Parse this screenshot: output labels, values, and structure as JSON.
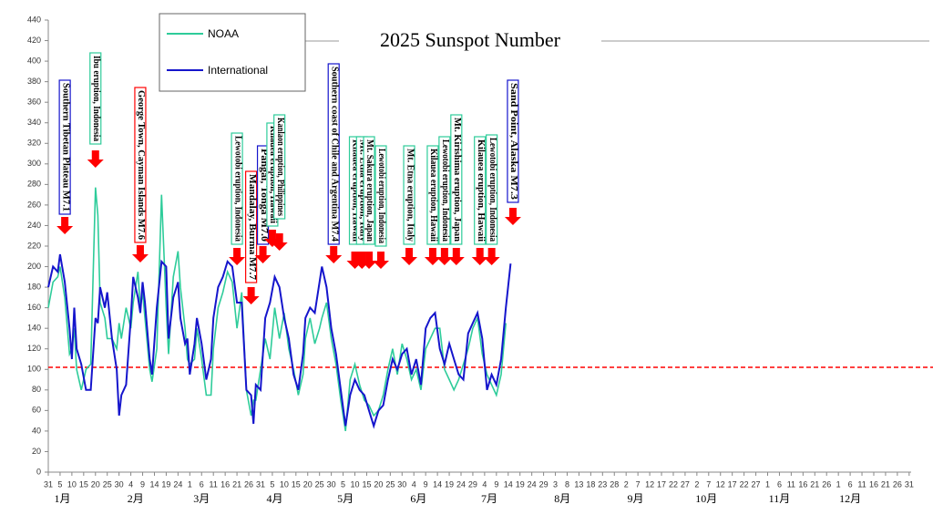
{
  "chart_data": {
    "type": "line",
    "title": "2025 Sunspot Number",
    "x": [
      0,
      2,
      4,
      5,
      7,
      9,
      10,
      11,
      12,
      14,
      16,
      18,
      20,
      21,
      22,
      24,
      25,
      27,
      29,
      30,
      31,
      33,
      35,
      36,
      38,
      39,
      40,
      41,
      43,
      44,
      46,
      48,
      50,
      51,
      53,
      55,
      56,
      58,
      59,
      60,
      62,
      63,
      65,
      67,
      69,
      70,
      72,
      74,
      76,
      78,
      80,
      82,
      84,
      86,
      87,
      88,
      90,
      92,
      94,
      96,
      98,
      100,
      102,
      104,
      106,
      108,
      109,
      111,
      113,
      115,
      116,
      118,
      120,
      122,
      124,
      126,
      128,
      130,
      132,
      134,
      136,
      138,
      140,
      142,
      144,
      146,
      148,
      150,
      152,
      154,
      156,
      158,
      160,
      162,
      164,
      166,
      168,
      170,
      172,
      174,
      176,
      178,
      180,
      182,
      184,
      186,
      188,
      190,
      192,
      194,
      196
    ],
    "series": [
      {
        "name": "NOAA",
        "color": "#2ecc9a",
        "values": [
          160,
          185,
          190,
          200,
          170,
          115,
          120,
          140,
          100,
          80,
          100,
          105,
          277,
          250,
          165,
          150,
          130,
          130,
          120,
          145,
          130,
          160,
          140,
          165,
          195,
          160,
          175,
          150,
          100,
          88,
          120,
          270,
          160,
          115,
          190,
          215,
          180,
          140,
          110,
          105,
          110,
          140,
          110,
          75,
          75,
          120,
          160,
          175,
          195,
          185,
          140,
          175,
          80,
          55,
          70,
          70,
          100,
          130,
          110,
          160,
          130,
          155,
          120,
          100,
          75,
          95,
          130,
          150,
          125,
          140,
          150,
          165,
          130,
          105,
          70,
          40,
          90,
          105,
          85,
          70,
          65,
          55,
          60,
          75,
          100,
          120,
          95,
          125,
          110,
          90,
          100,
          80,
          120,
          130,
          140,
          140,
          100,
          90,
          80,
          90,
          105,
          120,
          140,
          150,
          115,
          95,
          85,
          75,
          95,
          145,
          null
        ]
      },
      {
        "name": "International",
        "color": "#1515cc",
        "values": [
          180,
          200,
          195,
          212,
          185,
          140,
          110,
          160,
          120,
          105,
          80,
          80,
          150,
          145,
          180,
          160,
          175,
          130,
          100,
          55,
          75,
          85,
          150,
          190,
          170,
          155,
          185,
          165,
          110,
          95,
          160,
          205,
          200,
          130,
          170,
          185,
          150,
          125,
          130,
          95,
          125,
          150,
          125,
          90,
          110,
          150,
          180,
          190,
          205,
          200,
          165,
          165,
          80,
          75,
          47,
          85,
          80,
          150,
          165,
          190,
          180,
          150,
          130,
          95,
          80,
          115,
          150,
          160,
          155,
          185,
          200,
          180,
          140,
          115,
          80,
          45,
          75,
          90,
          80,
          75,
          60,
          45,
          60,
          65,
          90,
          110,
          100,
          115,
          120,
          95,
          110,
          85,
          140,
          150,
          155,
          120,
          105,
          125,
          110,
          95,
          90,
          135,
          145,
          155,
          130,
          80,
          95,
          85,
          110,
          160,
          203
        ]
      }
    ],
    "reference_line": {
      "value": 102,
      "color": "#ff0000"
    },
    "xlim": [
      0,
      367
    ],
    "xticks": [
      {
        "value": 0,
        "label": "31"
      },
      {
        "value": 5,
        "label": "5"
      },
      {
        "value": 10,
        "label": "10"
      },
      {
        "value": 15,
        "label": "15"
      },
      {
        "value": 20,
        "label": "20"
      },
      {
        "value": 25,
        "label": "25"
      },
      {
        "value": 30,
        "label": "30"
      },
      {
        "value": 35,
        "label": "4"
      },
      {
        "value": 40,
        "label": "9"
      },
      {
        "value": 45,
        "label": "14"
      },
      {
        "value": 50,
        "label": "19"
      },
      {
        "value": 55,
        "label": "24"
      },
      {
        "value": 60,
        "label": "1"
      },
      {
        "value": 65,
        "label": "6"
      },
      {
        "value": 70,
        "label": "11"
      },
      {
        "value": 75,
        "label": "16"
      },
      {
        "value": 80,
        "label": "21"
      },
      {
        "value": 85,
        "label": "26"
      },
      {
        "value": 90,
        "label": "31"
      },
      {
        "value": 95,
        "label": "5"
      },
      {
        "value": 100,
        "label": "10"
      },
      {
        "value": 105,
        "label": "15"
      },
      {
        "value": 110,
        "label": "20"
      },
      {
        "value": 115,
        "label": "25"
      },
      {
        "value": 120,
        "label": "30"
      },
      {
        "value": 125,
        "label": "5"
      },
      {
        "value": 130,
        "label": "10"
      },
      {
        "value": 135,
        "label": "15"
      },
      {
        "value": 140,
        "label": "20"
      },
      {
        "value": 145,
        "label": "25"
      },
      {
        "value": 150,
        "label": "30"
      },
      {
        "value": 155,
        "label": "4"
      },
      {
        "value": 160,
        "label": "9"
      },
      {
        "value": 165,
        "label": "14"
      },
      {
        "value": 170,
        "label": "19"
      },
      {
        "value": 175,
        "label": "24"
      },
      {
        "value": 180,
        "label": "29"
      },
      {
        "value": 185,
        "label": "4"
      },
      {
        "value": 190,
        "label": "9"
      },
      {
        "value": 195,
        "label": "14"
      },
      {
        "value": 200,
        "label": "19"
      },
      {
        "value": 205,
        "label": "24"
      },
      {
        "value": 210,
        "label": "29"
      },
      {
        "value": 215,
        "label": "3"
      },
      {
        "value": 220,
        "label": "8"
      },
      {
        "value": 225,
        "label": "13"
      },
      {
        "value": 230,
        "label": "18"
      },
      {
        "value": 235,
        "label": "23"
      },
      {
        "value": 240,
        "label": "28"
      },
      {
        "value": 245,
        "label": "2"
      },
      {
        "value": 250,
        "label": "7"
      },
      {
        "value": 255,
        "label": "12"
      },
      {
        "value": 260,
        "label": "17"
      },
      {
        "value": 265,
        "label": "22"
      },
      {
        "value": 270,
        "label": "27"
      },
      {
        "value": 275,
        "label": "2"
      },
      {
        "value": 280,
        "label": "7"
      },
      {
        "value": 285,
        "label": "12"
      },
      {
        "value": 290,
        "label": "17"
      },
      {
        "value": 295,
        "label": "22"
      },
      {
        "value": 300,
        "label": "27"
      },
      {
        "value": 305,
        "label": "1"
      },
      {
        "value": 310,
        "label": "6"
      },
      {
        "value": 315,
        "label": "11"
      },
      {
        "value": 320,
        "label": "16"
      },
      {
        "value": 325,
        "label": "21"
      },
      {
        "value": 330,
        "label": "26"
      },
      {
        "value": 335,
        "label": "1"
      },
      {
        "value": 340,
        "label": "6"
      },
      {
        "value": 345,
        "label": "11"
      },
      {
        "value": 350,
        "label": "16"
      },
      {
        "value": 355,
        "label": "21"
      },
      {
        "value": 360,
        "label": "26"
      },
      {
        "value": 365,
        "label": "31"
      }
    ],
    "month_ticks": [
      {
        "value": 6,
        "label": "1月"
      },
      {
        "value": 37,
        "label": "2月"
      },
      {
        "value": 65,
        "label": "3月"
      },
      {
        "value": 96,
        "label": "4月"
      },
      {
        "value": 126,
        "label": "5月"
      },
      {
        "value": 157,
        "label": "6月"
      },
      {
        "value": 187,
        "label": "7月"
      },
      {
        "value": 218,
        "label": "8月"
      },
      {
        "value": 249,
        "label": "9月"
      },
      {
        "value": 279,
        "label": "10月"
      },
      {
        "value": 310,
        "label": "11月"
      },
      {
        "value": 340,
        "label": "12月"
      }
    ],
    "ylim": [
      0,
      440
    ],
    "yticks": [
      0,
      20,
      40,
      60,
      80,
      100,
      120,
      140,
      160,
      180,
      200,
      220,
      240,
      260,
      280,
      300,
      320,
      340,
      360,
      380,
      400,
      420,
      440
    ],
    "annotations": [
      {
        "text": "Southern Tibetan Plateau M7.1",
        "x": 7,
        "border_color": "#1515cc"
      },
      {
        "text": "Ibu eruption, Indonesia",
        "x": 20,
        "border_color": "#2ecc9a"
      },
      {
        "text": "George Town, Cayman Islands M7.6",
        "x": 39,
        "border_color": "#ff0000"
      },
      {
        "text": "Lewotobi eruption, Indonesia",
        "x": 80,
        "border_color": "#2ecc9a"
      },
      {
        "text": "Mandalay, Burma M7.7",
        "x": 86,
        "border_color": "#ff0000"
      },
      {
        "text": "Pangai, Tonga M7.0",
        "x": 91,
        "border_color": "#1515cc"
      },
      {
        "text": "Kilauea eruption, Hawaii",
        "x": 95,
        "border_color": "#2ecc9a"
      },
      {
        "text": "Kanlaon eruption, Philippines",
        "x": 98,
        "border_color": "#2ecc9a"
      },
      {
        "text": "Southern coast of Chile and Argentina M7.4",
        "x": 121,
        "border_color": "#1515cc"
      },
      {
        "text": "Kilauea eruption, Hawaii",
        "x": 130,
        "border_color": "#2ecc9a"
      },
      {
        "text": "Mt. Etna eruption, Italy",
        "x": 133,
        "border_color": "#2ecc9a"
      },
      {
        "text": "Mt. Sakura eruption, Japan",
        "x": 136,
        "border_color": "#2ecc9a"
      },
      {
        "text": "Lewotobi eruption, Indonesia",
        "x": 141,
        "border_color": "#2ecc9a"
      },
      {
        "text": "Mt. Etna eruption, Italy",
        "x": 153,
        "border_color": "#2ecc9a"
      },
      {
        "text": "Kilauea eruption, Hawaii",
        "x": 163,
        "border_color": "#2ecc9a"
      },
      {
        "text": "Lewotobi eruption, Indonesia",
        "x": 168,
        "border_color": "#2ecc9a"
      },
      {
        "text": "Mt. Kirishima eruption, Japan",
        "x": 173,
        "border_color": "#2ecc9a"
      },
      {
        "text": "Kilauea eruption, Hawaii",
        "x": 183,
        "border_color": "#2ecc9a"
      },
      {
        "text": "Lewotobi eruption, Indonesia",
        "x": 188,
        "border_color": "#2ecc9a"
      },
      {
        "text": "Sand Point, Alaska M7.3",
        "x": 197,
        "border_color": "#1515cc"
      }
    ]
  }
}
